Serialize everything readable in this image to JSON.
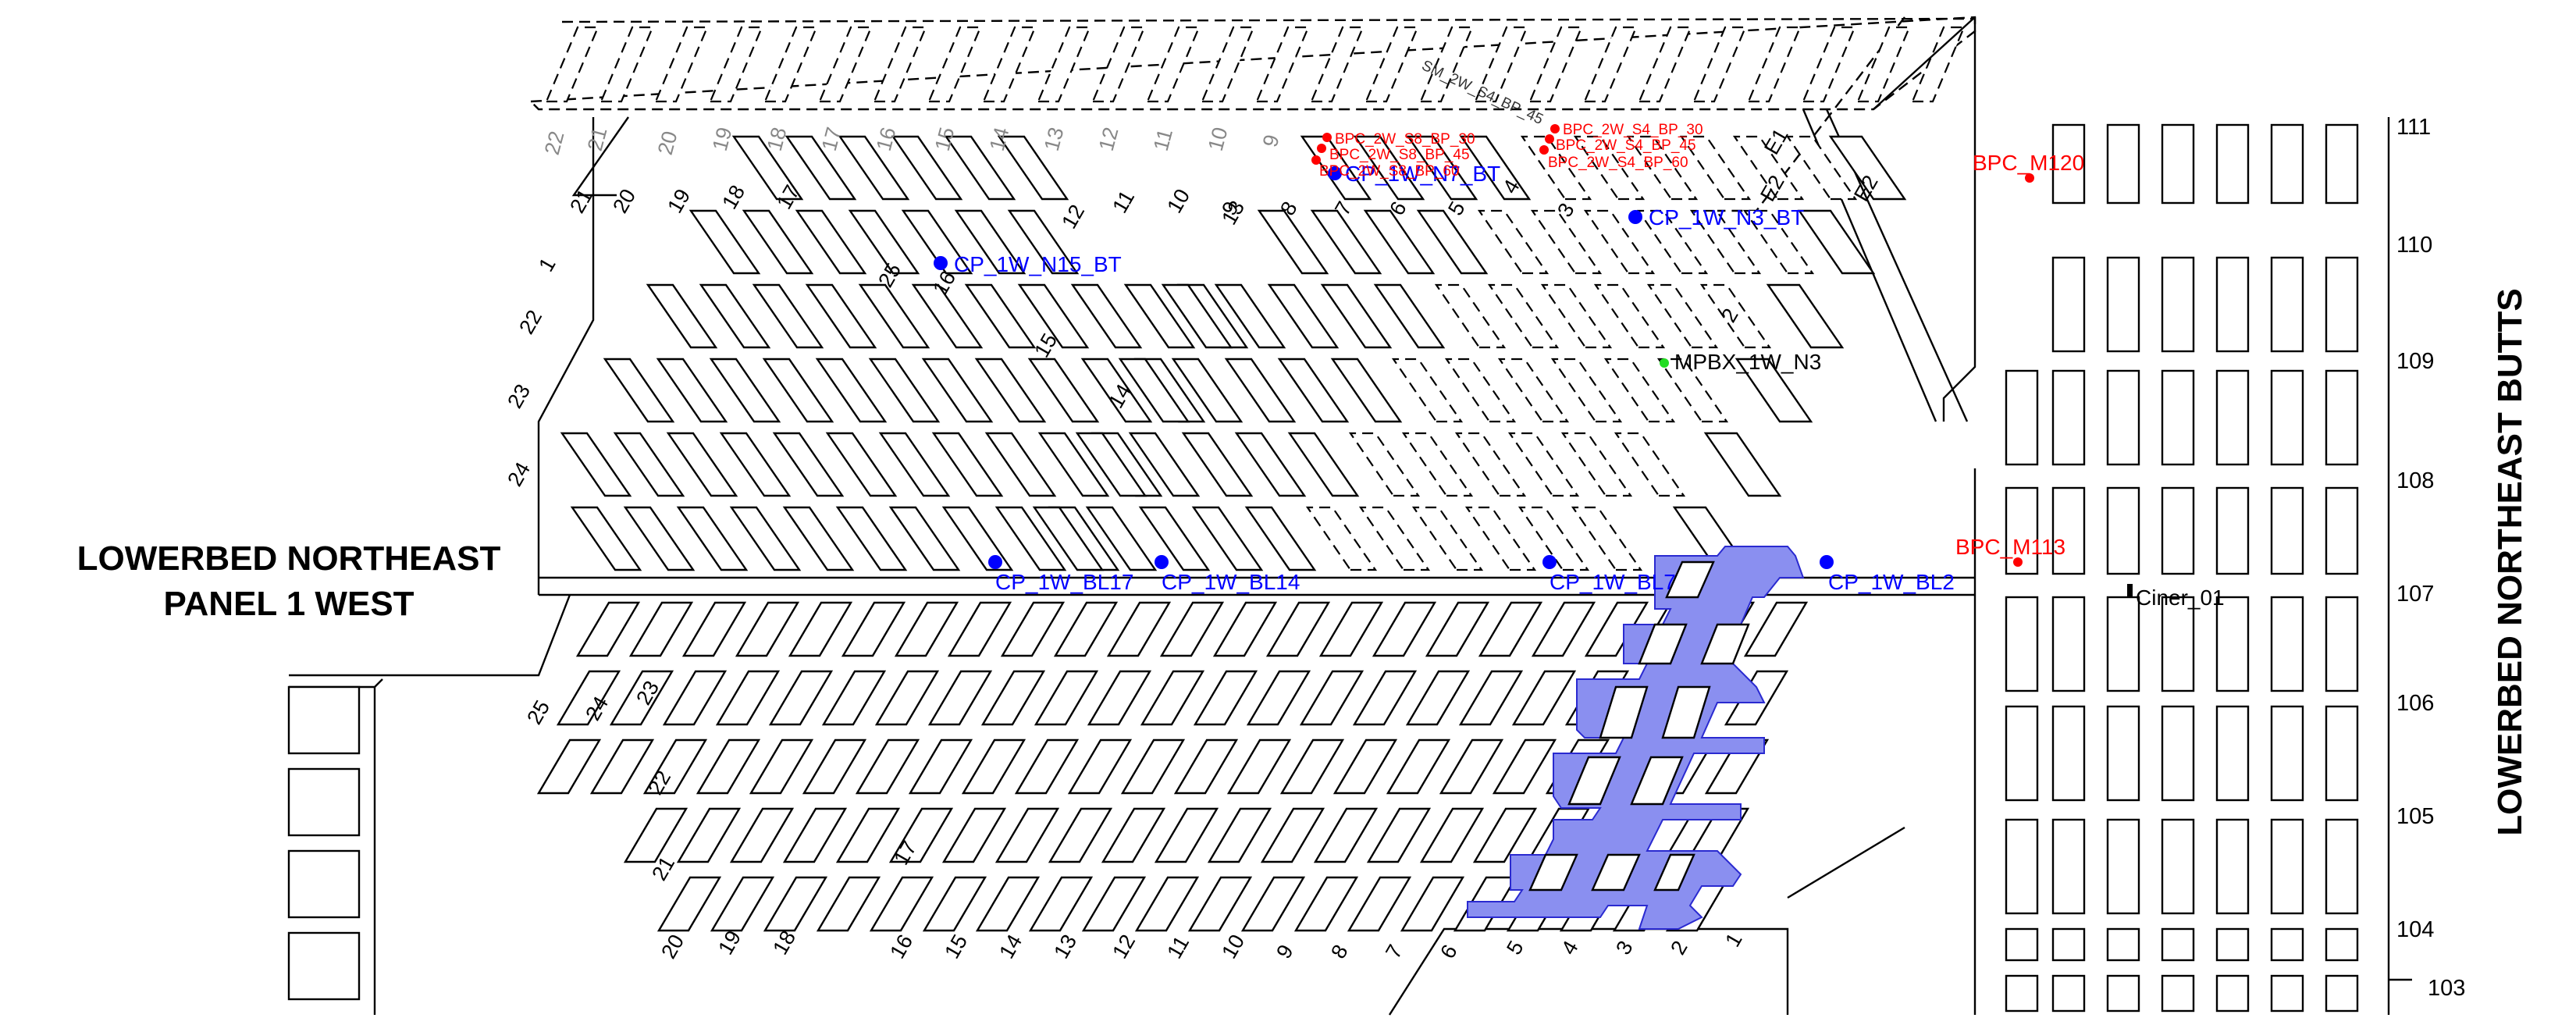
{
  "title": {
    "panel_line1": "LOWERBED NORTHEAST",
    "panel_line2": "PANEL 1 WEST",
    "butts": "LOWERBED NORTHEAST BUTTS"
  },
  "colors": {
    "line": "#000000",
    "mined_fill": "#8a8ff0",
    "mined_stroke": "#2a2ad0",
    "blue_point": "#0000ff",
    "red_point": "#ff0000",
    "green_point": "#22dd22",
    "grey_label": "#888888"
  },
  "row_numbers": [
    "111",
    "110",
    "109",
    "108",
    "107",
    "106",
    "105",
    "104",
    "103"
  ],
  "top_grey_crosscuts": [
    "22",
    "21",
    "20",
    "19",
    "18",
    "17",
    "16",
    "15",
    "14",
    "13",
    "12",
    "11",
    "10",
    "9"
  ],
  "upper_crosscuts": [
    "21",
    "20",
    "19",
    "18",
    "17",
    "11",
    "10",
    "9",
    "8",
    "7",
    "6",
    "5",
    "4",
    "3",
    "2",
    "1",
    "22",
    "23",
    "24",
    "25",
    "16",
    "15",
    "14",
    "13",
    "12"
  ],
  "entries": [
    "E1",
    "E2",
    "E2"
  ],
  "lower_crosscuts": [
    "25",
    "24",
    "23",
    "22",
    "21",
    "20",
    "19",
    "18",
    "17",
    "16",
    "15",
    "14",
    "13",
    "12",
    "11",
    "10",
    "9",
    "8",
    "7",
    "6",
    "5",
    "4",
    "3",
    "2",
    "1"
  ],
  "points": {
    "blue": [
      {
        "label": "CP_1W_N15_BT",
        "name": "cp-1w-n15-bt"
      },
      {
        "label": "CP_1W_N7_BT",
        "name": "cp-1w-n7-bt"
      },
      {
        "label": "CP_1W_N3_BT",
        "name": "cp-1w-n3-bt"
      },
      {
        "label": "CP_1W_BL17",
        "name": "cp-1w-bl17"
      },
      {
        "label": "CP_1W_BL14",
        "name": "cp-1w-bl14"
      },
      {
        "label": "CP_1W_BL7",
        "name": "cp-1w-bl7"
      },
      {
        "label": "CP_1W_BL2",
        "name": "cp-1w-bl2"
      }
    ],
    "red": [
      {
        "label": "BPC_2W_S8_BP_30",
        "name": "bpc-2w-s8-bp-30"
      },
      {
        "label": "BPC_2W_S8_BP_45",
        "name": "bpc-2w-s8-bp-45"
      },
      {
        "label": "BPC_2W_S8_BP_60",
        "name": "bpc-2w-s8-bp-60"
      },
      {
        "label": "BPC_2W_S4_BP_30",
        "name": "bpc-2w-s4-bp-30"
      },
      {
        "label": "BPC_2W_S4_BP_45",
        "name": "bpc-2w-s4-bp-45"
      },
      {
        "label": "BPC_2W_S4_BP_60",
        "name": "bpc-2w-s4-bp-60"
      },
      {
        "label": "BPC_M120",
        "name": "bpc-m120"
      },
      {
        "label": "BPC_M113",
        "name": "bpc-m113"
      }
    ],
    "green": [
      {
        "label": "MPBX_1W_N3",
        "name": "mpbx-1w-n3"
      }
    ],
    "black": [
      {
        "label": "Ciner_01",
        "name": "ciner-01"
      }
    ],
    "dark": [
      {
        "label": "SM_2W_S4_BP_45",
        "name": "sm-2w-s4-bp-45"
      }
    ]
  }
}
